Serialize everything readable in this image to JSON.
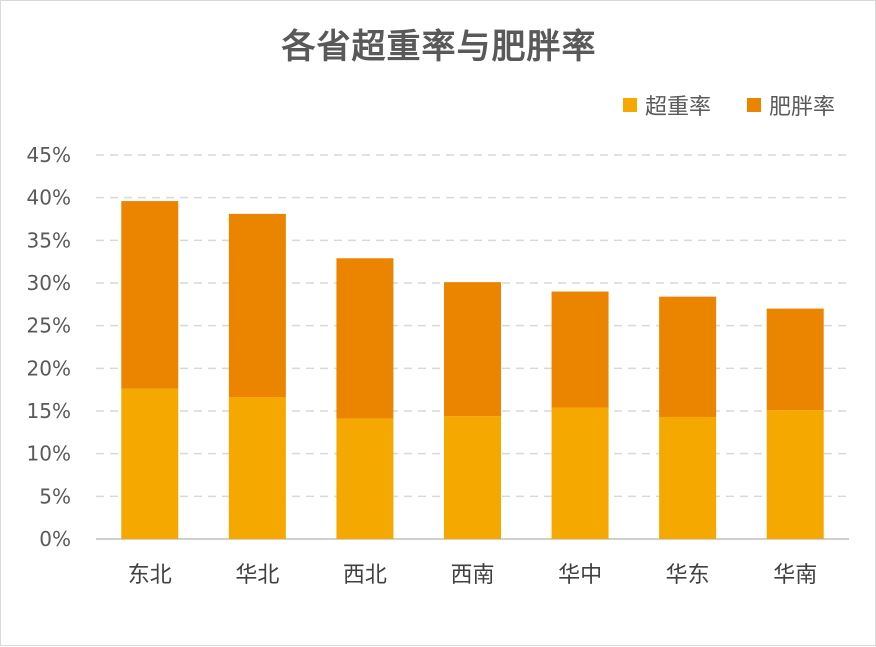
{
  "chart_data": {
    "type": "bar",
    "stacked": true,
    "title": "各省超重率与肥胖率",
    "categories": [
      "东北",
      "华北",
      "西北",
      "西南",
      "华中",
      "华东",
      "华南"
    ],
    "series": [
      {
        "name": "超重率",
        "color": "#F5A900",
        "values": [
          17.6,
          16.6,
          14.1,
          14.4,
          15.4,
          14.3,
          15.1
        ]
      },
      {
        "name": "肥胖率",
        "color": "#EB8500",
        "values": [
          22.0,
          21.5,
          18.8,
          15.7,
          13.6,
          14.1,
          11.9
        ]
      }
    ],
    "ylim": [
      0,
      45
    ],
    "yticks": [
      "0%",
      "5%",
      "10%",
      "15%",
      "20%",
      "25%",
      "30%",
      "35%",
      "40%",
      "45%"
    ],
    "grid": true,
    "legend_position": "top-right"
  }
}
